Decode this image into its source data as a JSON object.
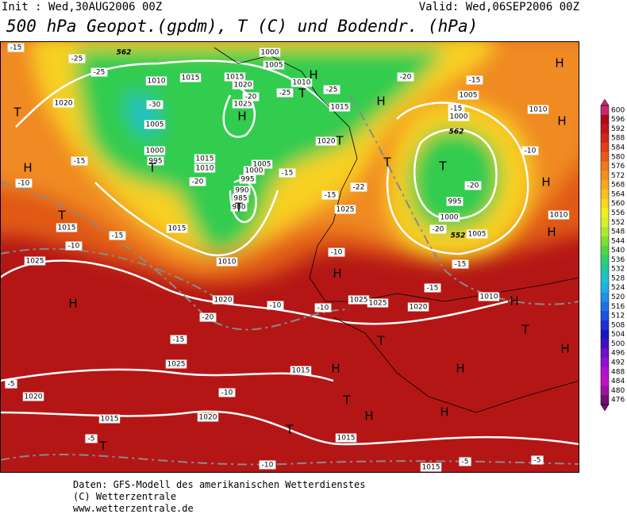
{
  "header": {
    "init": "Init : Wed,30AUG2006 00Z",
    "valid": "Valid: Wed,06SEP2006 00Z",
    "title": "500 hPa Geopot.(gpdm), T (C) und Bodendr. (hPa)"
  },
  "map_labels": {
    "pressure": [
      "1010",
      "1015",
      "1020",
      "1005",
      "1000",
      "995",
      "1015",
      "1010",
      "1015",
      "1020",
      "1025",
      "1000",
      "1005",
      "1010",
      "1015",
      "1020",
      "1005",
      "1000",
      "995",
      "990",
      "985",
      "980",
      "1015",
      "1010",
      "1025",
      "1015",
      "1020",
      "1025",
      "1020",
      "1015",
      "1020",
      "1015",
      "1025",
      "1025",
      "1020",
      "1015",
      "1015",
      "1000",
      "1005",
      "1010",
      "995",
      "1000",
      "1005",
      "1010",
      "1010",
      "1025"
    ],
    "temperature": [
      "-25",
      "-25",
      "-30",
      "-15",
      "-10",
      "-15",
      "-10",
      "-20",
      "-15",
      "-10",
      "-10",
      "-10",
      "-15",
      "-15",
      "-20",
      "-20",
      "-25",
      "-25",
      "-20",
      "-15",
      "-15",
      "-10",
      "-20",
      "-20",
      "-15",
      "-15",
      "-10",
      "-5",
      "-5",
      "-10",
      "-5",
      "-5",
      "-22",
      "-15"
    ],
    "geopotential": [
      "562",
      "562",
      "552"
    ],
    "centers": [
      "H",
      "T",
      "H",
      "T",
      "H",
      "T",
      "T",
      "H",
      "H",
      "H",
      "T",
      "H",
      "T",
      "H",
      "H",
      "T",
      "H",
      "T",
      "T",
      "T",
      "H",
      "H",
      "H",
      "T",
      "H",
      "H",
      "H",
      "T",
      "T"
    ]
  },
  "colorbar": {
    "values": [
      600,
      596,
      592,
      588,
      584,
      580,
      576,
      572,
      568,
      564,
      560,
      556,
      552,
      548,
      544,
      540,
      536,
      532,
      528,
      524,
      520,
      516,
      512,
      508,
      504,
      500,
      496,
      492,
      488,
      484,
      480,
      476
    ],
    "colors": [
      "#c8286e",
      "#a80c18",
      "#c01818",
      "#d02818",
      "#e04018",
      "#e85a18",
      "#f07820",
      "#f49020",
      "#f8a820",
      "#f8c020",
      "#f8d820",
      "#f0f020",
      "#d4f030",
      "#b0e830",
      "#80e030",
      "#50d840",
      "#30d070",
      "#20c8a0",
      "#20c0c8",
      "#20b0e0",
      "#2090e8",
      "#2070e8",
      "#2050e0",
      "#2030d0",
      "#1818c0",
      "#4010c0",
      "#7010c8",
      "#9010d0",
      "#b010d0",
      "#c010c0",
      "#a010a0",
      "#701070"
    ]
  },
  "footer": [
    "Daten: GFS-Modell des amerikanischen Wetterdienstes",
    "(C) Wetterzentrale",
    "www.wetterzentrale.de"
  ]
}
